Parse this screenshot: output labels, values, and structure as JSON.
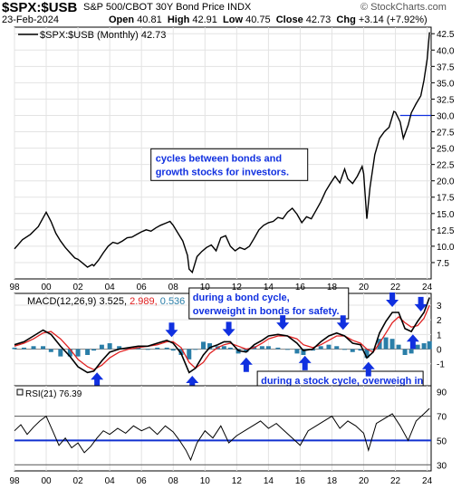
{
  "header": {
    "symbol": "$SPX:$USB",
    "description": "S&P 500/CBOT 30Y Bond Price INDX",
    "watermark": "© StockCharts.com",
    "date": "23-Feb-2024",
    "open_label": "Open",
    "open": "40.81",
    "high_label": "High",
    "high": "42.91",
    "low_label": "Low",
    "low": "40.75",
    "close_label": "Close",
    "close": "42.73",
    "chg_label": "Chg",
    "chg": "+3.14 (+7.92%)"
  },
  "chart_data": [
    {
      "type": "line",
      "legend": "$SPX:$USB (Monthly) 42.73",
      "x": [
        1998.0,
        1998.5,
        1999.0,
        1999.5,
        2000.0,
        2000.3,
        2000.6,
        2000.9,
        2001.2,
        2001.5,
        2001.8,
        2002.0,
        2002.3,
        2002.6,
        2002.9,
        2003.0,
        2003.3,
        2003.6,
        2003.9,
        2004.2,
        2004.5,
        2004.8,
        2005.1,
        2005.4,
        2005.7,
        2006.0,
        2006.3,
        2006.6,
        2006.9,
        2007.2,
        2007.5,
        2007.8,
        2008.0,
        2008.3,
        2008.6,
        2008.9,
        2009.0,
        2009.2,
        2009.5,
        2009.8,
        2010.1,
        2010.4,
        2010.7,
        2011.0,
        2011.3,
        2011.6,
        2011.9,
        2012.2,
        2012.5,
        2012.8,
        2013.1,
        2013.4,
        2013.7,
        2014.0,
        2014.3,
        2014.6,
        2014.9,
        2015.2,
        2015.5,
        2015.8,
        2016.1,
        2016.4,
        2016.7,
        2017.0,
        2017.3,
        2017.6,
        2017.9,
        2018.2,
        2018.5,
        2018.8,
        2019.0,
        2019.3,
        2019.6,
        2019.9,
        2020.0,
        2020.2,
        2020.4,
        2020.7,
        2021.0,
        2021.3,
        2021.6,
        2021.9,
        2022.0,
        2022.3,
        2022.5,
        2022.8,
        2023.0,
        2023.3,
        2023.6,
        2023.8,
        2024.0,
        2024.15
      ],
      "y": [
        9.6,
        11.0,
        11.8,
        13.0,
        15.2,
        13.8,
        12.0,
        10.8,
        9.8,
        9.0,
        8.2,
        8.0,
        7.4,
        6.8,
        7.2,
        7.0,
        7.9,
        9.0,
        10.0,
        10.6,
        10.4,
        10.8,
        11.3,
        11.4,
        11.8,
        12.2,
        12.5,
        12.3,
        12.8,
        13.2,
        13.5,
        13.8,
        13.2,
        12.0,
        10.8,
        8.6,
        6.5,
        6.0,
        8.4,
        9.2,
        9.8,
        10.2,
        9.3,
        11.3,
        11.6,
        10.0,
        9.3,
        9.8,
        9.5,
        10.0,
        11.2,
        12.5,
        13.2,
        13.6,
        13.8,
        14.4,
        14.2,
        15.2,
        15.8,
        14.9,
        13.6,
        14.5,
        14.2,
        15.5,
        16.8,
        18.4,
        19.6,
        20.7,
        19.7,
        21.8,
        20.3,
        19.6,
        20.7,
        22.2,
        21.1,
        14.2,
        19.0,
        24.0,
        26.5,
        27.5,
        28.2,
        30.6,
        30.5,
        29.0,
        26.5,
        28.5,
        30.4,
        31.8,
        33.0,
        35.4,
        38.6,
        42.73
      ],
      "ylim": [
        5,
        43.5
      ],
      "yticks": [
        "7.5",
        "10.0",
        "12.5",
        "15.0",
        "17.5",
        "20.0",
        "22.5",
        "25.0",
        "27.5",
        "30.0",
        "32.5",
        "35.0",
        "37.5",
        "40.0",
        "42.5"
      ],
      "reference_line": 30,
      "annotation": "cycles between bonds and growth stocks for investors."
    },
    {
      "type": "line",
      "legend_name": "MACD(12,26,9)",
      "legend_macd": "3.525",
      "legend_signal": "2.989",
      "legend_hist": "0.536",
      "macd_color": "#000000",
      "signal_color": "#e02020",
      "hist_color": "#2a7ea8",
      "x": [
        1998.0,
        1998.6,
        1999.2,
        1999.8,
        2000.3,
        2000.9,
        2001.5,
        2002.0,
        2002.6,
        2003.0,
        2003.5,
        2004.0,
        2004.6,
        2005.2,
        2005.8,
        2006.4,
        2007.0,
        2007.6,
        2008.0,
        2008.5,
        2009.0,
        2009.4,
        2009.9,
        2010.3,
        2010.8,
        2011.2,
        2011.6,
        2012.1,
        2012.6,
        2013.1,
        2013.6,
        2014.0,
        2014.6,
        2015.2,
        2015.8,
        2016.2,
        2016.8,
        2017.3,
        2017.8,
        2018.3,
        2018.8,
        2019.3,
        2019.8,
        2020.2,
        2020.6,
        2021.0,
        2021.4,
        2021.8,
        2022.2,
        2022.6,
        2023.0,
        2023.4,
        2023.8,
        2024.15
      ],
      "macd": [
        0.3,
        0.5,
        0.9,
        1.3,
        1.0,
        0.2,
        -0.5,
        -1.2,
        -1.6,
        -1.5,
        -0.8,
        -0.2,
        0.0,
        0.1,
        0.2,
        0.2,
        0.4,
        0.6,
        0.4,
        -0.3,
        -1.6,
        -1.3,
        -0.4,
        0.1,
        0.3,
        0.5,
        0.5,
        -0.1,
        -0.2,
        0.3,
        0.6,
        0.9,
        1.0,
        0.9,
        0.4,
        -0.1,
        0.0,
        0.5,
        0.9,
        1.1,
        0.9,
        0.4,
        0.3,
        -0.6,
        -0.2,
        1.1,
        1.9,
        2.5,
        2.5,
        1.4,
        1.2,
        1.9,
        2.5,
        3.525
      ],
      "signal": [
        0.2,
        0.4,
        0.7,
        1.1,
        1.2,
        0.7,
        0.0,
        -0.7,
        -1.2,
        -1.4,
        -1.1,
        -0.6,
        -0.2,
        0.0,
        0.1,
        0.2,
        0.3,
        0.5,
        0.5,
        0.1,
        -0.9,
        -1.3,
        -0.9,
        -0.3,
        0.1,
        0.3,
        0.4,
        0.2,
        0.0,
        0.1,
        0.4,
        0.7,
        0.9,
        0.9,
        0.7,
        0.3,
        0.1,
        0.3,
        0.6,
        0.9,
        0.9,
        0.6,
        0.4,
        0.0,
        -0.2,
        0.4,
        1.1,
        1.8,
        2.2,
        1.8,
        1.5,
        1.6,
        2.1,
        2.989
      ],
      "ylim": [
        -2.5,
        3.8
      ],
      "yticks": [
        "-1",
        "0",
        "1",
        "2",
        "3"
      ],
      "notes": [
        "during a bond cycle, overweight in bonds for safety.",
        "during a stock cycle, overweigh in stocks for maximum growth."
      ],
      "up_arrows": [
        2003.2,
        2009.2,
        2012.6,
        2016.3,
        2020.3,
        2023.1
      ],
      "down_arrows": [
        2007.9,
        2011.5,
        2014.9,
        2018.7,
        2021.8,
        2023.6
      ]
    },
    {
      "type": "line",
      "legend": "RSI(21) 76.39",
      "x": [
        1998.0,
        1998.4,
        1998.8,
        1999.2,
        1999.6,
        2000.0,
        2000.4,
        2000.8,
        2001.2,
        2001.6,
        2002.0,
        2002.4,
        2002.8,
        2003.2,
        2003.6,
        2004.0,
        2004.5,
        2005.0,
        2005.5,
        2006.0,
        2006.5,
        2007.0,
        2007.5,
        2008.0,
        2008.4,
        2008.8,
        2009.1,
        2009.5,
        2010.0,
        2010.5,
        2011.0,
        2011.5,
        2012.0,
        2012.5,
        2013.0,
        2013.5,
        2014.0,
        2014.5,
        2015.0,
        2015.5,
        2016.0,
        2016.5,
        2017.0,
        2017.5,
        2018.0,
        2018.5,
        2019.0,
        2019.5,
        2020.0,
        2020.3,
        2020.8,
        2021.3,
        2021.8,
        2022.3,
        2022.8,
        2023.3,
        2023.8,
        2024.15
      ],
      "y": [
        58,
        63,
        55,
        61,
        66,
        70,
        58,
        46,
        52,
        44,
        48,
        40,
        45,
        52,
        58,
        55,
        60,
        56,
        62,
        58,
        61,
        55,
        62,
        57,
        50,
        42,
        34,
        48,
        58,
        52,
        62,
        48,
        54,
        58,
        62,
        66,
        60,
        64,
        58,
        52,
        46,
        58,
        62,
        66,
        70,
        60,
        66,
        62,
        56,
        42,
        64,
        68,
        72,
        62,
        50,
        66,
        72,
        76.39
      ],
      "ylim": [
        25,
        95
      ],
      "yticks": [
        "30",
        "50",
        "70",
        "90"
      ],
      "band_lines": [
        70,
        30
      ],
      "blue_line": 50
    }
  ],
  "x_axis": {
    "ticks": [
      "98",
      "00",
      "02",
      "04",
      "06",
      "08",
      "10",
      "12",
      "14",
      "16",
      "18",
      "20",
      "22",
      "24"
    ],
    "tick_years": [
      1998,
      2000,
      2002,
      2004,
      2006,
      2008,
      2010,
      2012,
      2014,
      2016,
      2018,
      2020,
      2022,
      2024
    ]
  }
}
